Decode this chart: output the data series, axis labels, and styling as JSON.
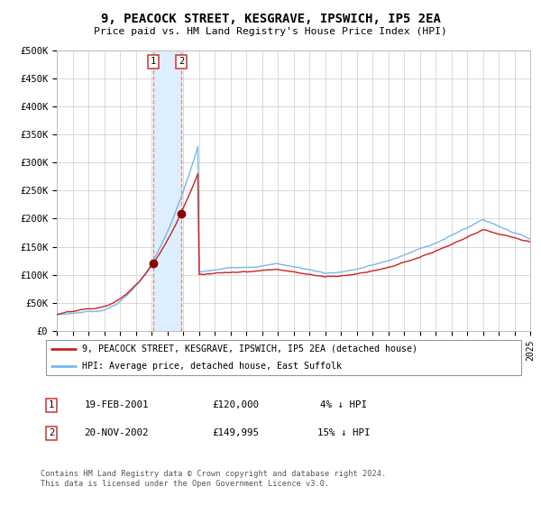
{
  "title": "9, PEACOCK STREET, KESGRAVE, IPSWICH, IP5 2EA",
  "subtitle": "Price paid vs. HM Land Registry's House Price Index (HPI)",
  "x_start_year": 1995,
  "x_end_year": 2025,
  "y_ticks": [
    0,
    50000,
    100000,
    150000,
    200000,
    250000,
    300000,
    350000,
    400000,
    450000,
    500000
  ],
  "y_tick_labels": [
    "£0",
    "£50K",
    "£100K",
    "£150K",
    "£200K",
    "£250K",
    "£300K",
    "£350K",
    "£400K",
    "£450K",
    "£500K"
  ],
  "hpi_line_color": "#7ab8e8",
  "price_line_color": "#cc2222",
  "marker_color": "#880000",
  "vspan_color": "#ddeeff",
  "vline_color": "#dd8888",
  "transaction1_date": 2001.12,
  "transaction2_date": 2002.88,
  "transaction1_price": 120000,
  "transaction2_price": 149995,
  "legend_label_price": "9, PEACOCK STREET, KESGRAVE, IPSWICH, IP5 2EA (detached house)",
  "legend_label_hpi": "HPI: Average price, detached house, East Suffolk",
  "table_row1": [
    "1",
    "19-FEB-2001",
    "£120,000",
    "4% ↓ HPI"
  ],
  "table_row2": [
    "2",
    "20-NOV-2002",
    "£149,995",
    "15% ↓ HPI"
  ],
  "footnote": "Contains HM Land Registry data © Crown copyright and database right 2024.\nThis data is licensed under the Open Government Licence v3.0.",
  "background_color": "#ffffff",
  "grid_color": "#cccccc",
  "box_edge_color": "#cc3333"
}
